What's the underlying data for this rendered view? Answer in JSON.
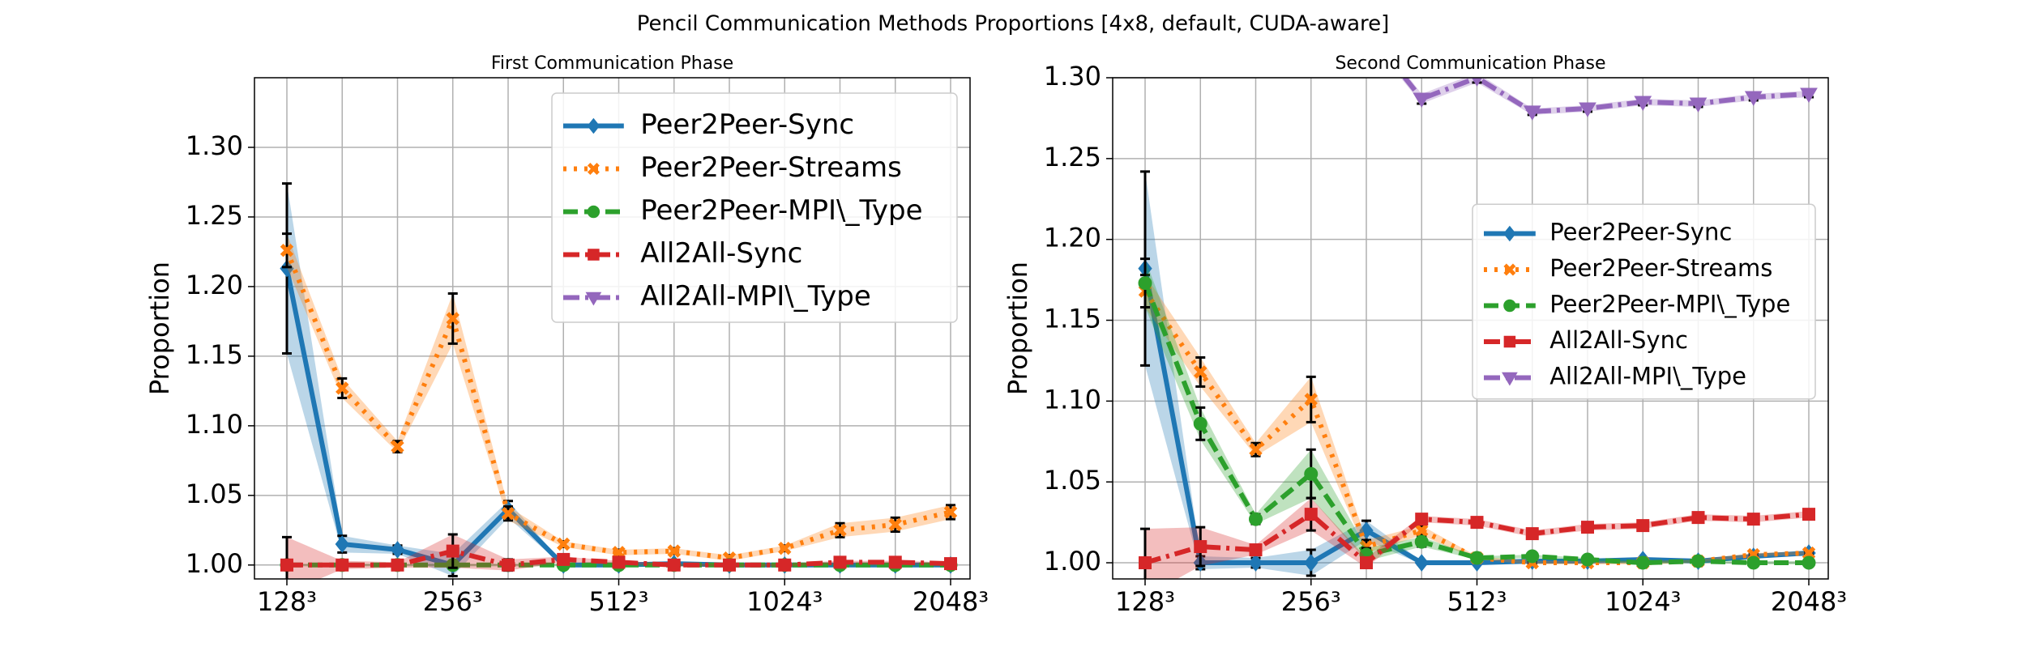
{
  "title": "Pencil Communication Methods Proportions [4x8, default, CUDA-aware]",
  "chart_data": [
    {
      "type": "line",
      "title": "First Communication Phase",
      "ylabel": "Proportion",
      "categories": [
        "128³",
        null,
        null,
        "256³",
        null,
        null,
        "512³",
        null,
        null,
        "1024³",
        null,
        null,
        "2048³"
      ],
      "ylim": [
        0.99,
        1.35
      ],
      "yticks": [
        {
          "value": 1.0,
          "label": "1.00"
        },
        {
          "value": 1.05,
          "label": "1.05"
        },
        {
          "value": 1.1,
          "label": "1.10"
        },
        {
          "value": 1.15,
          "label": "1.15"
        },
        {
          "value": 1.2,
          "label": "1.20"
        },
        {
          "value": 1.25,
          "label": "1.25"
        },
        {
          "value": 1.3,
          "label": "1.30"
        }
      ],
      "grid": true,
      "legend": "upper right",
      "series": [
        {
          "name": "Peer2Peer-Sync",
          "color": "#1f77b4",
          "marker": "diamond",
          "linestyle": "solid",
          "values": [
            1.213,
            1.015,
            1.011,
            1.0,
            1.04,
            1.0,
            1.0,
            1.001,
            1.0,
            1.0,
            1.0,
            1.0,
            1.0
          ],
          "errors": [
            0.061,
            0.006,
            0.003,
            0.008,
            0.006,
            0.001,
            0.001,
            0.001,
            0.001,
            0.001,
            0.001,
            0.001,
            0.001
          ]
        },
        {
          "name": "Peer2Peer-Streams",
          "color": "#ff7f0e",
          "marker": "x",
          "linestyle": "dotted",
          "values": [
            1.226,
            1.127,
            1.085,
            1.177,
            1.037,
            1.015,
            1.009,
            1.01,
            1.005,
            1.012,
            1.025,
            1.029,
            1.038
          ],
          "errors": [
            0.012,
            0.007,
            0.004,
            0.018,
            0.005,
            0.002,
            0.002,
            0.002,
            0.002,
            0.002,
            0.005,
            0.005,
            0.005
          ]
        },
        {
          "name": "Peer2Peer-MPI\\_Type",
          "color": "#2ca02c",
          "marker": "circle",
          "linestyle": "dashed",
          "values": [
            1.0,
            1.0,
            1.0,
            1.0,
            1.0,
            1.0,
            1.0,
            1.0,
            1.0,
            1.0,
            1.0,
            1.0,
            1.0
          ],
          "errors": [
            0.001,
            0.001,
            0.001,
            0.001,
            0.001,
            0.001,
            0.001,
            0.001,
            0.001,
            0.001,
            0.001,
            0.001,
            0.001
          ]
        },
        {
          "name": "All2All-Sync",
          "color": "#d62728",
          "marker": "square",
          "linestyle": "dashdot",
          "values": [
            1.0,
            1.0,
            1.0,
            1.01,
            1.0,
            1.004,
            1.002,
            1.0,
            1.0,
            1.0,
            1.002,
            1.002,
            1.001
          ],
          "errors": [
            0.02,
            0.003,
            0.002,
            0.012,
            0.004,
            0.002,
            0.001,
            0.001,
            0.001,
            0.001,
            0.001,
            0.001,
            0.001
          ]
        },
        {
          "name": "All2All-MPI\\_Type",
          "color": "#9467bd",
          "marker": "triangle",
          "linestyle": "dashdot",
          "values": [
            null,
            null,
            null,
            null,
            null,
            null,
            null,
            null,
            null,
            null,
            null,
            null,
            null
          ],
          "errors": [
            null,
            null,
            null,
            null,
            null,
            null,
            null,
            null,
            null,
            null,
            null,
            null,
            null
          ]
        }
      ]
    },
    {
      "type": "line",
      "title": "Second Communication Phase",
      "ylabel": "Proportion",
      "categories": [
        "128³",
        null,
        null,
        "256³",
        null,
        null,
        "512³",
        null,
        null,
        "1024³",
        null,
        null,
        "2048³"
      ],
      "ylim": [
        0.99,
        1.3
      ],
      "yticks": [
        {
          "value": 1.0,
          "label": "1.00"
        },
        {
          "value": 1.05,
          "label": "1.05"
        },
        {
          "value": 1.1,
          "label": "1.10"
        },
        {
          "value": 1.15,
          "label": "1.15"
        },
        {
          "value": 1.2,
          "label": "1.20"
        },
        {
          "value": 1.25,
          "label": "1.25"
        },
        {
          "value": 1.3,
          "label": "1.30"
        }
      ],
      "grid": true,
      "legend": "center right",
      "series": [
        {
          "name": "Peer2Peer-Sync",
          "color": "#1f77b4",
          "marker": "diamond",
          "linestyle": "solid",
          "values": [
            1.182,
            1.0,
            1.0,
            1.0,
            1.02,
            1.0,
            1.0,
            1.001,
            1.001,
            1.002,
            1.001,
            1.004,
            1.006
          ],
          "errors": [
            0.06,
            0.004,
            0.003,
            0.008,
            0.006,
            0.001,
            0.001,
            0.001,
            0.001,
            0.001,
            0.001,
            0.001,
            0.001
          ]
        },
        {
          "name": "Peer2Peer-Streams",
          "color": "#ff7f0e",
          "marker": "x",
          "linestyle": "dotted",
          "values": [
            1.168,
            1.118,
            1.07,
            1.101,
            1.01,
            1.02,
            1.003,
            1.0,
            1.0,
            1.0,
            1.001,
            1.005,
            1.006
          ],
          "errors": [
            0.01,
            0.009,
            0.004,
            0.014,
            0.004,
            0.003,
            0.001,
            0.001,
            0.001,
            0.001,
            0.001,
            0.001,
            0.001
          ]
        },
        {
          "name": "Peer2Peer-MPI\\_Type",
          "color": "#2ca02c",
          "marker": "circle",
          "linestyle": "dashed",
          "values": [
            1.173,
            1.086,
            1.027,
            1.055,
            1.005,
            1.013,
            1.003,
            1.004,
            1.002,
            1.0,
            1.001,
            1.0,
            1.0
          ],
          "errors": [
            0.015,
            0.01,
            0.003,
            0.015,
            0.004,
            0.003,
            0.001,
            0.001,
            0.001,
            0.001,
            0.001,
            0.001,
            0.001
          ]
        },
        {
          "name": "All2All-Sync",
          "color": "#d62728",
          "marker": "square",
          "linestyle": "dashdot",
          "values": [
            1.0,
            1.01,
            1.008,
            1.03,
            1.0,
            1.027,
            1.025,
            1.018,
            1.022,
            1.023,
            1.028,
            1.027,
            1.03
          ],
          "errors": [
            0.021,
            0.012,
            0.003,
            0.01,
            0.003,
            0.002,
            0.002,
            0.002,
            0.002,
            0.002,
            0.002,
            0.002,
            0.002
          ]
        },
        {
          "name": "All2All-MPI\\_Type",
          "color": "#9467bd",
          "marker": "triangle",
          "linestyle": "dashdot",
          "values": [
            null,
            null,
            null,
            null,
            1.33,
            1.287,
            1.3,
            1.279,
            1.281,
            1.285,
            1.284,
            1.288,
            1.29
          ],
          "errors": [
            null,
            null,
            null,
            null,
            0.004,
            0.003,
            0.003,
            0.002,
            0.002,
            0.002,
            0.002,
            0.002,
            0.002
          ]
        }
      ]
    }
  ]
}
